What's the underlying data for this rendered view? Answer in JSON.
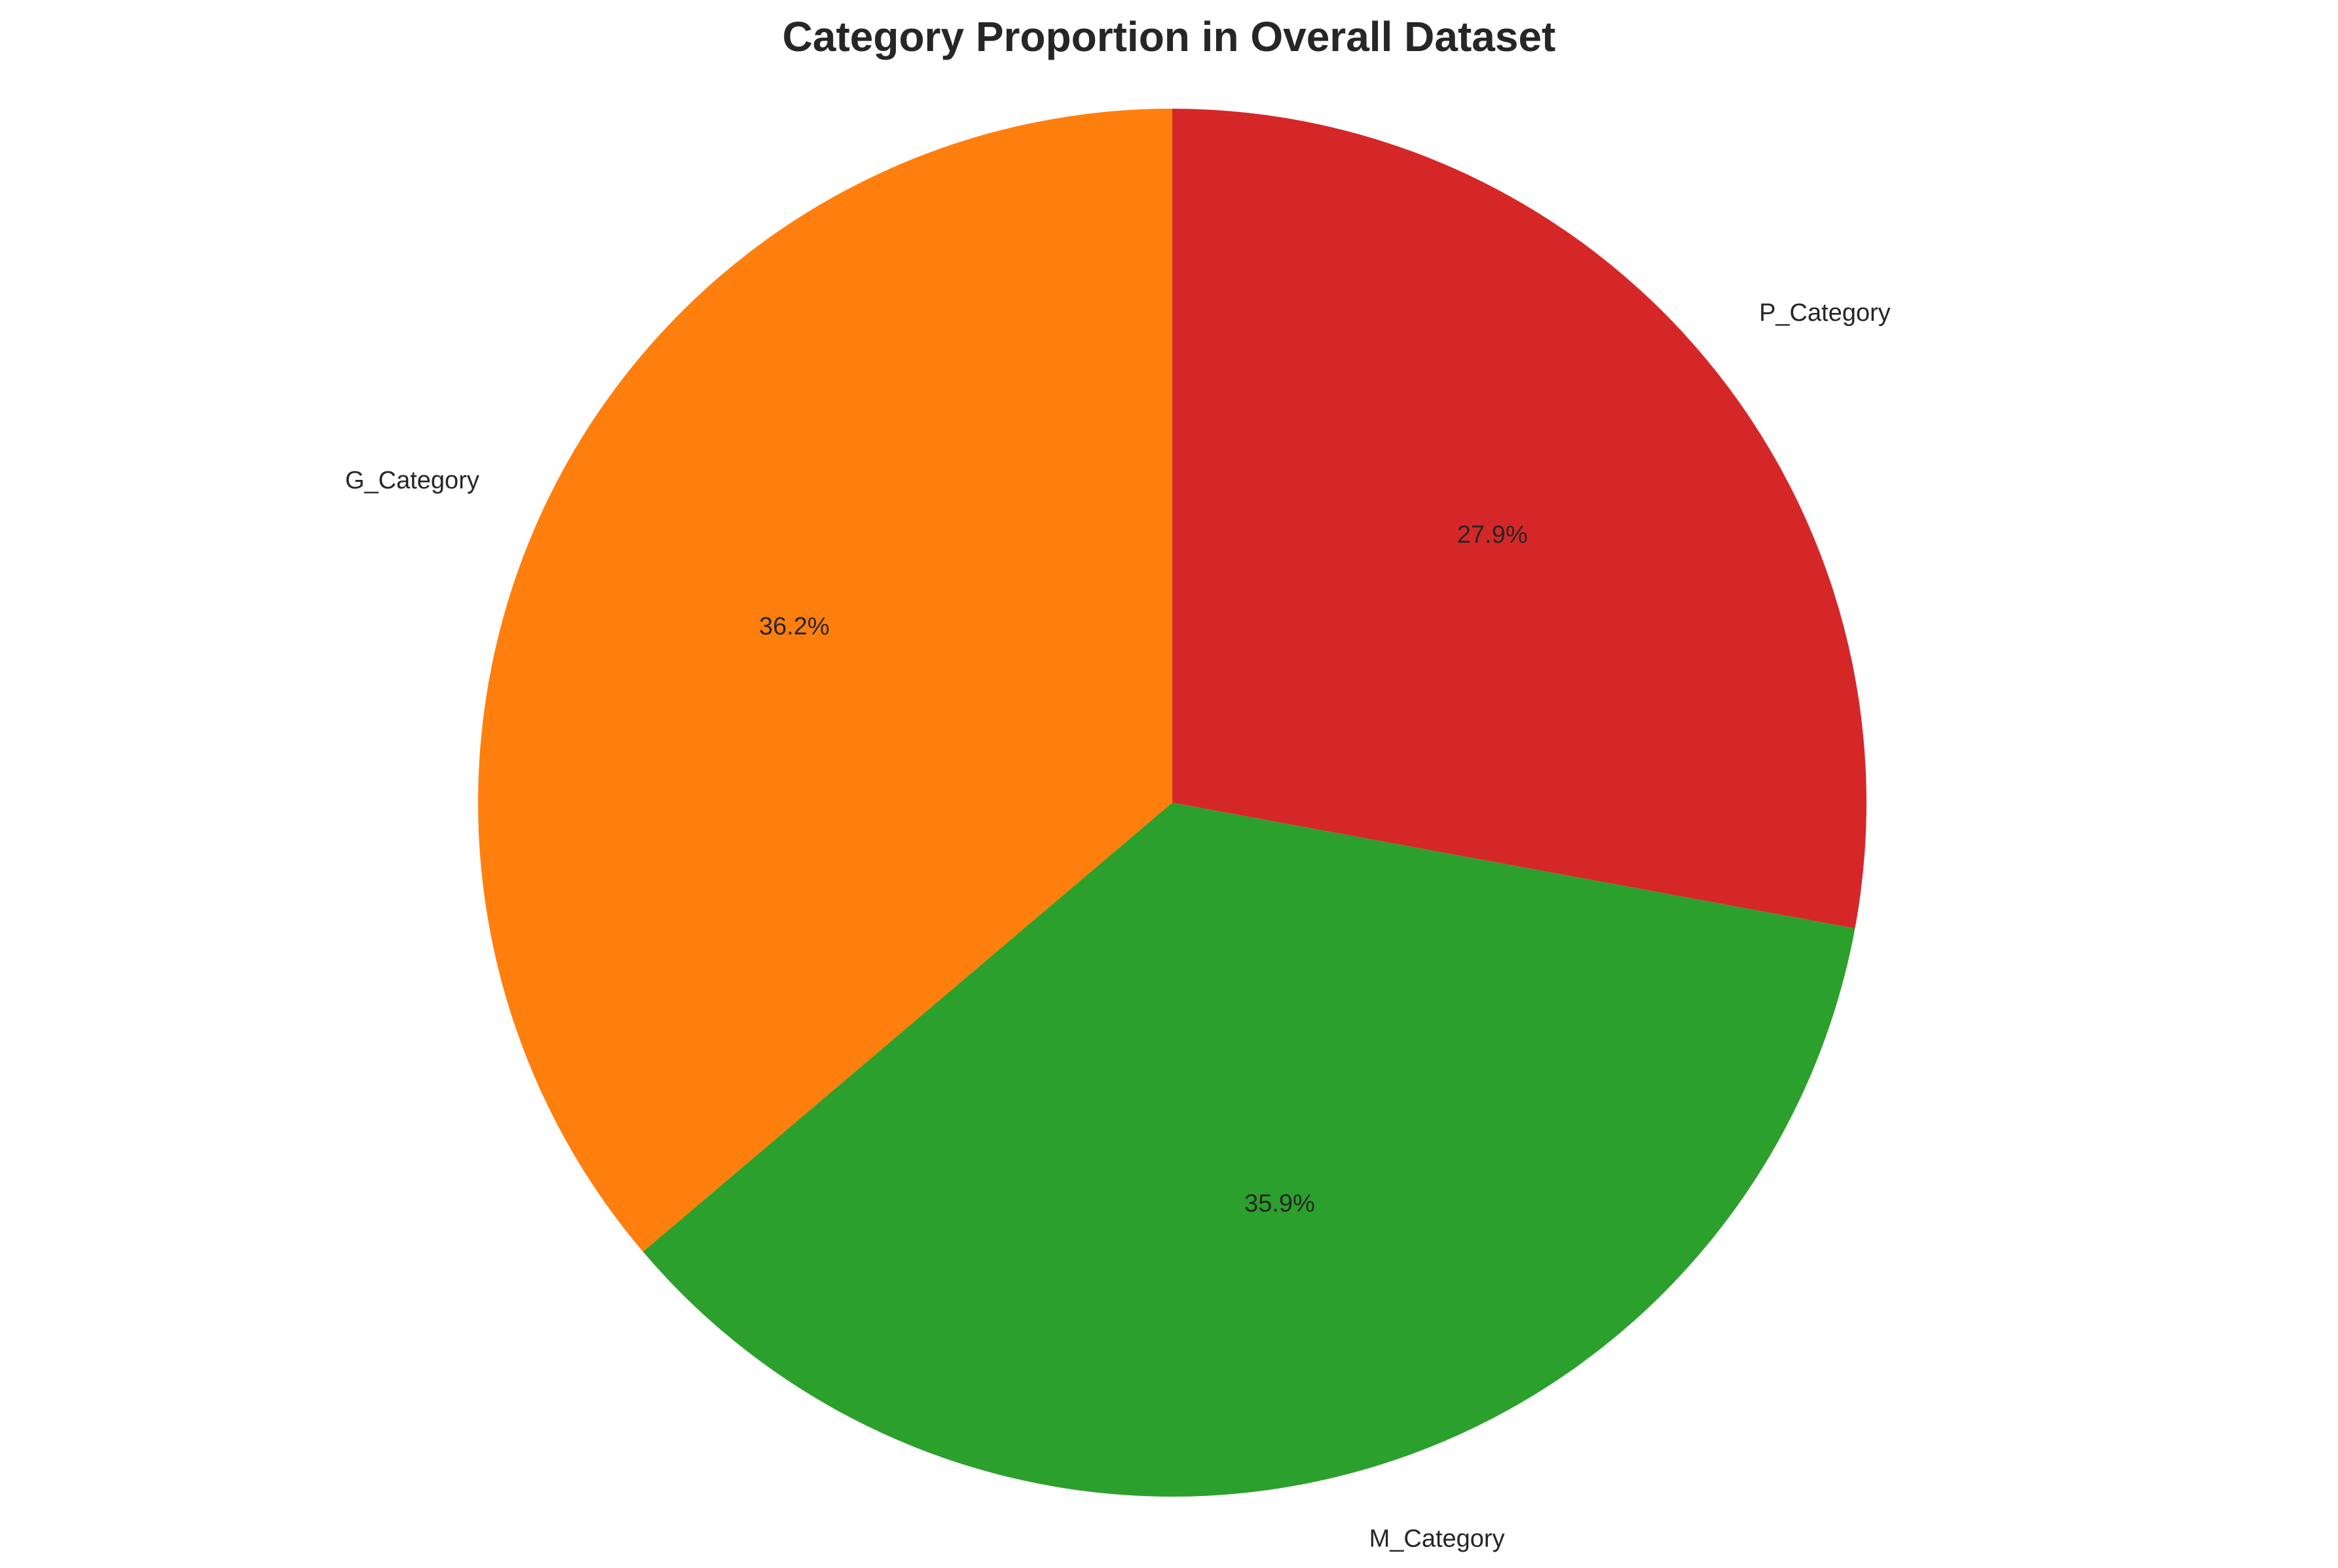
{
  "chart_data": {
    "type": "pie",
    "title": "Category Proportion in Overall Dataset",
    "start_angle_deg": 90,
    "direction": "counterclockwise",
    "slices": [
      {
        "label": "G_Category",
        "value": 36.2,
        "pct_label": "36.2%",
        "color": "#ff7f0e"
      },
      {
        "label": "M_Category",
        "value": 35.9,
        "pct_label": "35.9%",
        "color": "#2ca02c"
      },
      {
        "label": "P_Category",
        "value": 27.9,
        "pct_label": "27.9%",
        "color": "#d62728"
      }
    ],
    "legend": "none"
  }
}
